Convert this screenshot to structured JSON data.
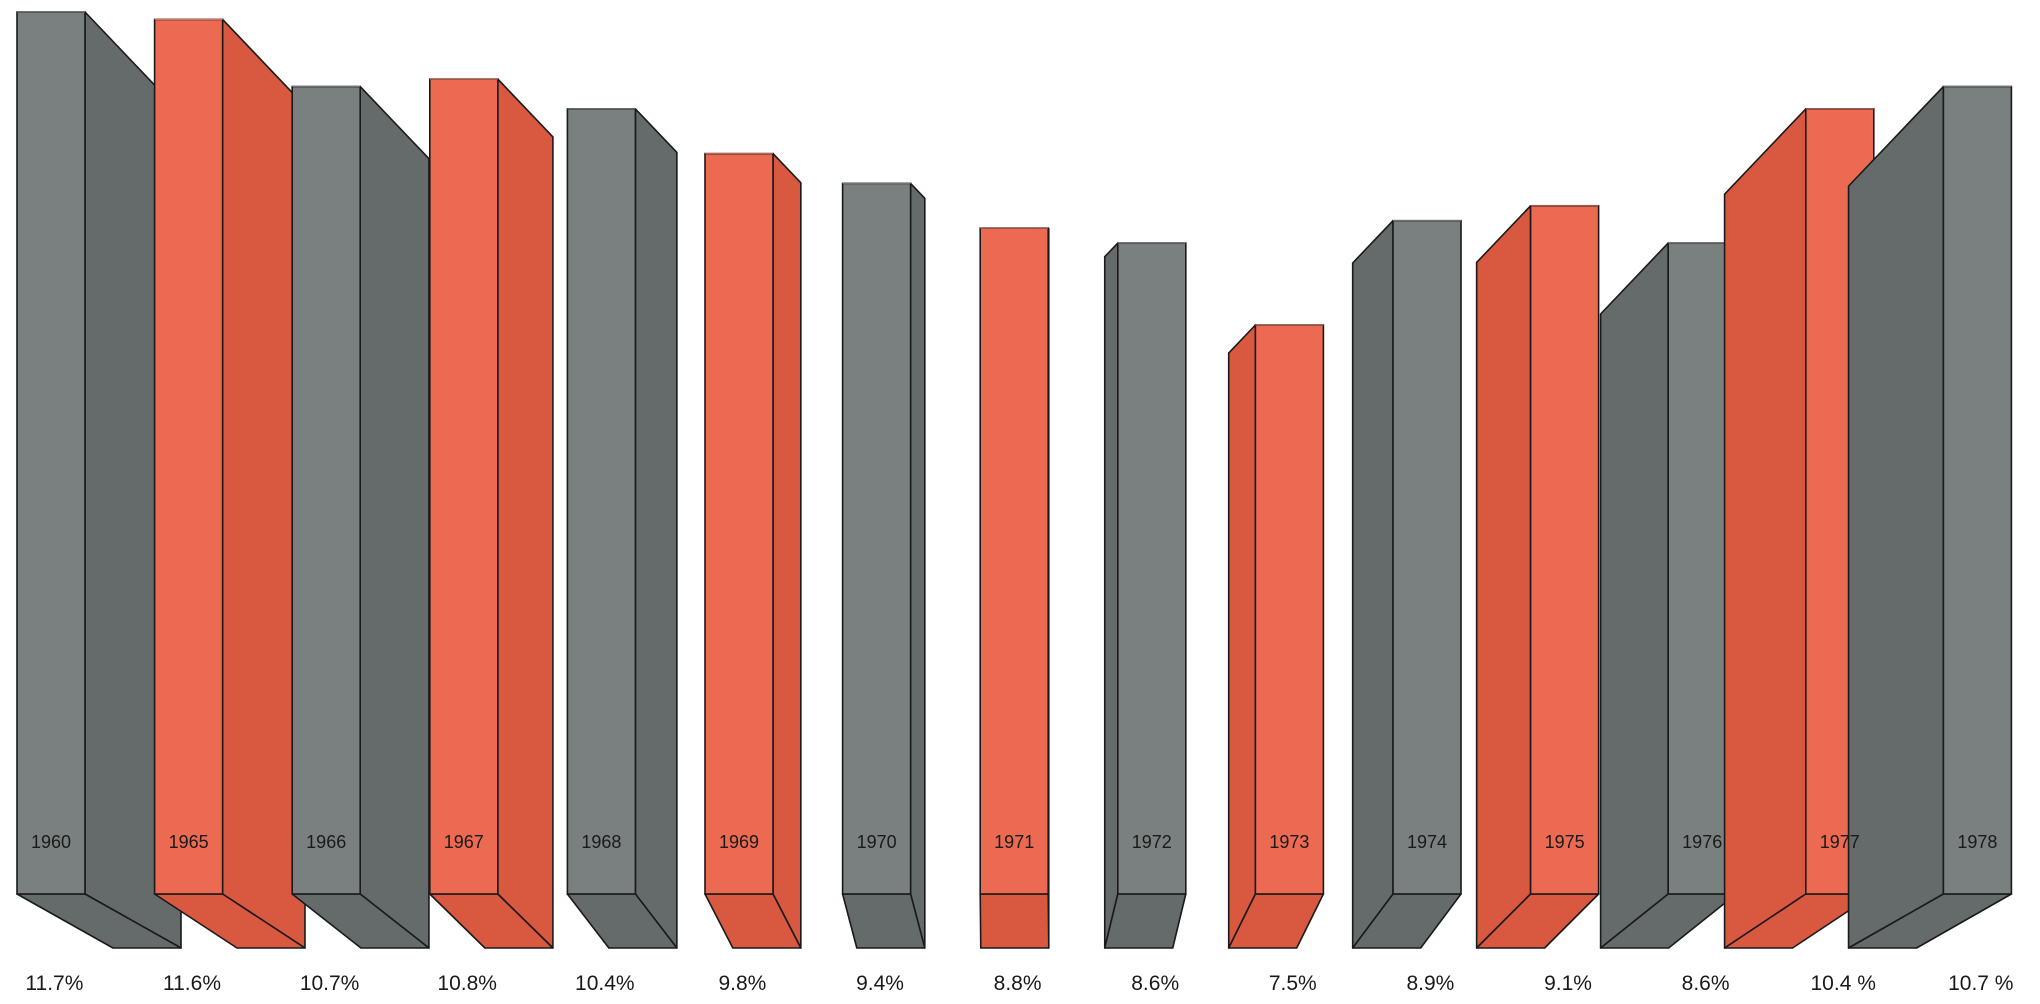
{
  "chart_data": {
    "type": "bar",
    "title": "",
    "xlabel": "",
    "ylabel": "",
    "categories": [
      "1960",
      "1965",
      "1966",
      "1967",
      "1968",
      "1969",
      "1970",
      "1971",
      "1972",
      "1973",
      "1974",
      "1975",
      "1976",
      "1977",
      "1978"
    ],
    "values": [
      11.7,
      11.6,
      10.7,
      10.8,
      10.4,
      9.8,
      9.4,
      8.8,
      8.6,
      7.5,
      8.9,
      9.1,
      8.6,
      10.4,
      10.7
    ],
    "value_labels": [
      "11.7%",
      "11.6%",
      "10.7%",
      "10.8%",
      "10.4%",
      "9.8%",
      "9.4%",
      "8.8%",
      "8.6%",
      "7.5%",
      "8.9%",
      "9.1%",
      "8.6%",
      "10.4 %",
      "10.7 %"
    ],
    "bar_colors": [
      "gray",
      "red",
      "gray",
      "red",
      "gray",
      "red",
      "gray",
      "red",
      "gray",
      "red",
      "gray",
      "red",
      "gray",
      "red",
      "gray"
    ],
    "palette": {
      "gray_front": "#79807f",
      "gray_side": "#656b6a",
      "gray_top": "#8c9291",
      "red_front": "#ec6a52",
      "red_side": "#d95840",
      "red_top": "#f07f69",
      "outline": "#1a1a1a",
      "text": "#1a1a1a"
    },
    "style": "3d-perspective-bars",
    "grid": false,
    "legend": "none"
  }
}
